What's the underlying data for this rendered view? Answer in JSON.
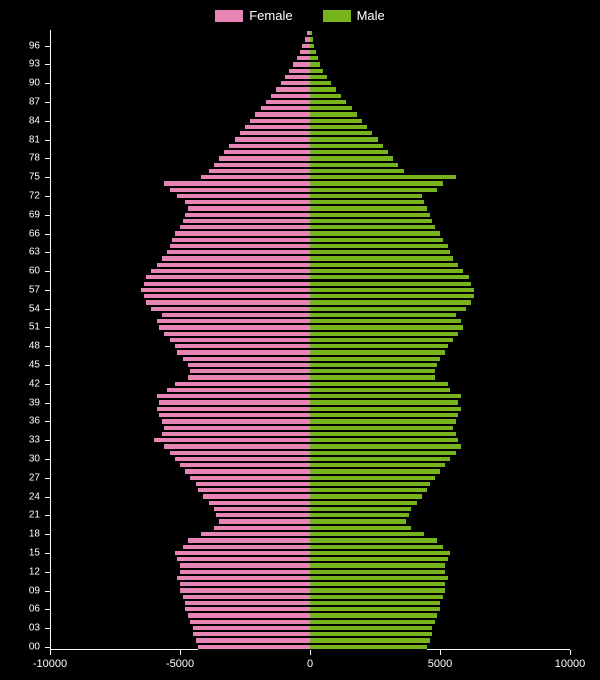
{
  "chart": {
    "type": "population-pyramid",
    "background_color": "#000000",
    "text_color": "#ffffff",
    "female_color": "#e685b5",
    "male_color": "#77b31c",
    "legend": {
      "female_label": "Female",
      "male_label": "Male"
    },
    "x_axis": {
      "min": -10000,
      "max": 10000,
      "ticks": [
        -10000,
        -5000,
        0,
        5000,
        10000
      ],
      "tick_labels": [
        "-10000",
        "-5000",
        "0",
        "5000",
        "10000"
      ]
    },
    "y_axis": {
      "min": 0,
      "max": 98,
      "ticks": [
        0,
        3,
        6,
        9,
        12,
        15,
        18,
        21,
        24,
        27,
        30,
        33,
        36,
        39,
        42,
        45,
        48,
        51,
        54,
        57,
        60,
        63,
        66,
        69,
        72,
        75,
        78,
        81,
        84,
        87,
        90,
        93,
        96
      ],
      "tick_labels": [
        "00",
        "03",
        "06",
        "09",
        "12",
        "15",
        "18",
        "21",
        "24",
        "27",
        "30",
        "33",
        "36",
        "39",
        "42",
        "45",
        "48",
        "51",
        "54",
        "57",
        "60",
        "63",
        "66",
        "69",
        "72",
        "75",
        "78",
        "81",
        "84",
        "87",
        "90",
        "93",
        "96"
      ]
    },
    "data": [
      {
        "age": 0,
        "female": 4300,
        "male": 4500
      },
      {
        "age": 1,
        "female": 4400,
        "male": 4600
      },
      {
        "age": 2,
        "female": 4500,
        "male": 4700
      },
      {
        "age": 3,
        "female": 4500,
        "male": 4700
      },
      {
        "age": 4,
        "female": 4600,
        "male": 4800
      },
      {
        "age": 5,
        "female": 4700,
        "male": 4900
      },
      {
        "age": 6,
        "female": 4800,
        "male": 5000
      },
      {
        "age": 7,
        "female": 4800,
        "male": 5000
      },
      {
        "age": 8,
        "female": 4900,
        "male": 5100
      },
      {
        "age": 9,
        "female": 5000,
        "male": 5200
      },
      {
        "age": 10,
        "female": 5000,
        "male": 5200
      },
      {
        "age": 11,
        "female": 5100,
        "male": 5300
      },
      {
        "age": 12,
        "female": 5000,
        "male": 5200
      },
      {
        "age": 13,
        "female": 5000,
        "male": 5200
      },
      {
        "age": 14,
        "female": 5100,
        "male": 5300
      },
      {
        "age": 15,
        "female": 5200,
        "male": 5400
      },
      {
        "age": 16,
        "female": 4900,
        "male": 5100
      },
      {
        "age": 17,
        "female": 4700,
        "male": 4900
      },
      {
        "age": 18,
        "female": 4200,
        "male": 4400
      },
      {
        "age": 19,
        "female": 3700,
        "male": 3900
      },
      {
        "age": 20,
        "female": 3500,
        "male": 3700
      },
      {
        "age": 21,
        "female": 3600,
        "male": 3800
      },
      {
        "age": 22,
        "female": 3700,
        "male": 3900
      },
      {
        "age": 23,
        "female": 3900,
        "male": 4100
      },
      {
        "age": 24,
        "female": 4100,
        "male": 4300
      },
      {
        "age": 25,
        "female": 4300,
        "male": 4500
      },
      {
        "age": 26,
        "female": 4400,
        "male": 4600
      },
      {
        "age": 27,
        "female": 4600,
        "male": 4800
      },
      {
        "age": 28,
        "female": 4800,
        "male": 5000
      },
      {
        "age": 29,
        "female": 5000,
        "male": 5200
      },
      {
        "age": 30,
        "female": 5200,
        "male": 5400
      },
      {
        "age": 31,
        "female": 5400,
        "male": 5600
      },
      {
        "age": 32,
        "female": 5600,
        "male": 5800
      },
      {
        "age": 33,
        "female": 6000,
        "male": 5700
      },
      {
        "age": 34,
        "female": 5700,
        "male": 5600
      },
      {
        "age": 35,
        "female": 5600,
        "male": 5500
      },
      {
        "age": 36,
        "female": 5700,
        "male": 5600
      },
      {
        "age": 37,
        "female": 5800,
        "male": 5700
      },
      {
        "age": 38,
        "female": 5900,
        "male": 5800
      },
      {
        "age": 39,
        "female": 5800,
        "male": 5700
      },
      {
        "age": 40,
        "female": 5900,
        "male": 5800
      },
      {
        "age": 41,
        "female": 5500,
        "male": 5400
      },
      {
        "age": 42,
        "female": 5200,
        "male": 5300
      },
      {
        "age": 43,
        "female": 4700,
        "male": 4800
      },
      {
        "age": 44,
        "female": 4600,
        "male": 4800
      },
      {
        "age": 45,
        "female": 4700,
        "male": 4900
      },
      {
        "age": 46,
        "female": 4900,
        "male": 5000
      },
      {
        "age": 47,
        "female": 5100,
        "male": 5200
      },
      {
        "age": 48,
        "female": 5200,
        "male": 5300
      },
      {
        "age": 49,
        "female": 5400,
        "male": 5500
      },
      {
        "age": 50,
        "female": 5600,
        "male": 5700
      },
      {
        "age": 51,
        "female": 5800,
        "male": 5900
      },
      {
        "age": 52,
        "female": 5900,
        "male": 5800
      },
      {
        "age": 53,
        "female": 5700,
        "male": 5600
      },
      {
        "age": 54,
        "female": 6100,
        "male": 6000
      },
      {
        "age": 55,
        "female": 6300,
        "male": 6200
      },
      {
        "age": 56,
        "female": 6400,
        "male": 6300
      },
      {
        "age": 57,
        "female": 6500,
        "male": 6300
      },
      {
        "age": 58,
        "female": 6400,
        "male": 6200
      },
      {
        "age": 59,
        "female": 6300,
        "male": 6100
      },
      {
        "age": 60,
        "female": 6100,
        "male": 5900
      },
      {
        "age": 61,
        "female": 5900,
        "male": 5700
      },
      {
        "age": 62,
        "female": 5700,
        "male": 5500
      },
      {
        "age": 63,
        "female": 5500,
        "male": 5400
      },
      {
        "age": 64,
        "female": 5400,
        "male": 5300
      },
      {
        "age": 65,
        "female": 5300,
        "male": 5100
      },
      {
        "age": 66,
        "female": 5200,
        "male": 5000
      },
      {
        "age": 67,
        "female": 5000,
        "male": 4800
      },
      {
        "age": 68,
        "female": 4900,
        "male": 4700
      },
      {
        "age": 69,
        "female": 4800,
        "male": 4600
      },
      {
        "age": 70,
        "female": 4700,
        "male": 4500
      },
      {
        "age": 71,
        "female": 4800,
        "male": 4400
      },
      {
        "age": 72,
        "female": 5100,
        "male": 4300
      },
      {
        "age": 73,
        "female": 5400,
        "male": 4900
      },
      {
        "age": 74,
        "female": 5600,
        "male": 5100
      },
      {
        "age": 75,
        "female": 4200,
        "male": 5600
      },
      {
        "age": 76,
        "female": 3900,
        "male": 3600
      },
      {
        "age": 77,
        "female": 3700,
        "male": 3400
      },
      {
        "age": 78,
        "female": 3500,
        "male": 3200
      },
      {
        "age": 79,
        "female": 3300,
        "male": 3000
      },
      {
        "age": 80,
        "female": 3100,
        "male": 2800
      },
      {
        "age": 81,
        "female": 2900,
        "male": 2600
      },
      {
        "age": 82,
        "female": 2700,
        "male": 2400
      },
      {
        "age": 83,
        "female": 2500,
        "male": 2200
      },
      {
        "age": 84,
        "female": 2300,
        "male": 2000
      },
      {
        "age": 85,
        "female": 2100,
        "male": 1800
      },
      {
        "age": 86,
        "female": 1900,
        "male": 1600
      },
      {
        "age": 87,
        "female": 1700,
        "male": 1400
      },
      {
        "age": 88,
        "female": 1500,
        "male": 1200
      },
      {
        "age": 89,
        "female": 1300,
        "male": 1000
      },
      {
        "age": 90,
        "female": 1100,
        "male": 800
      },
      {
        "age": 91,
        "female": 950,
        "male": 650
      },
      {
        "age": 92,
        "female": 800,
        "male": 500
      },
      {
        "age": 93,
        "female": 650,
        "male": 400
      },
      {
        "age": 94,
        "female": 500,
        "male": 300
      },
      {
        "age": 95,
        "female": 400,
        "male": 220
      },
      {
        "age": 96,
        "female": 300,
        "male": 150
      },
      {
        "age": 97,
        "female": 200,
        "male": 100
      },
      {
        "age": 98,
        "female": 120,
        "male": 60
      }
    ]
  }
}
